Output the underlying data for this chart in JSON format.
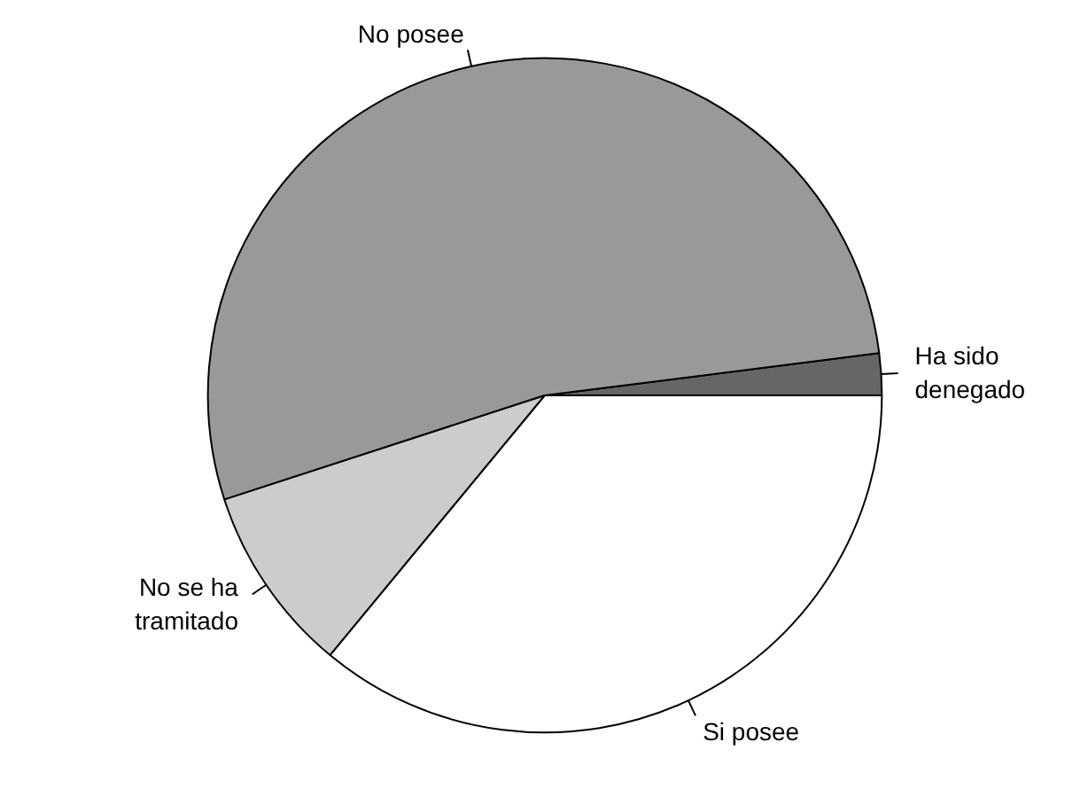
{
  "chart_data": {
    "type": "pie",
    "categories": [
      "Ha sido\ndenegado",
      "No posee",
      "No se ha\ntramitado",
      "Si posee"
    ],
    "values": [
      2,
      53,
      9,
      36
    ],
    "colors": [
      "#666666",
      "#999999",
      "#cccccc",
      "#ffffff"
    ]
  }
}
